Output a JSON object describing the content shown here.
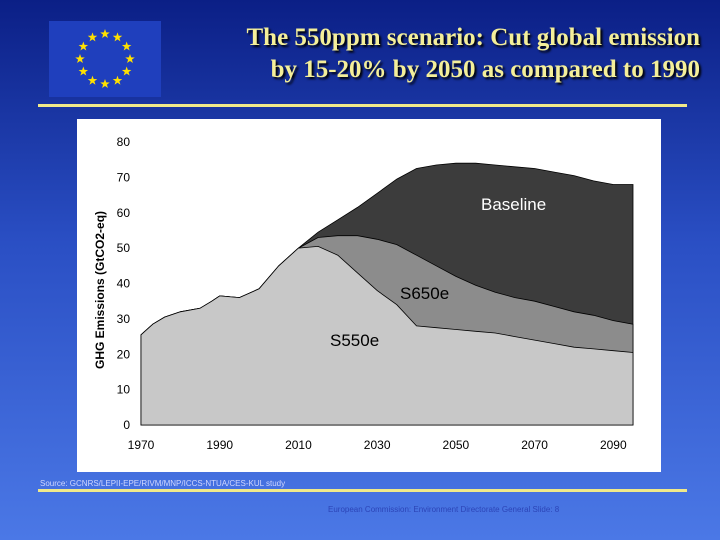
{
  "slide": {
    "title_line1": "The 550ppm scenario: Cut global emission",
    "title_line2": "by 15-20% by 2050 as compared to 1990",
    "source": "Source: GCNRS/LEPII-EPE/RIVM/MNP/ICCS-NTUA/CES-KUL study",
    "footer": "European Commission: Environment Directorate General Slide: 8"
  },
  "colors": {
    "title": "#f4ef9a",
    "rule": "#f0e98a",
    "baseline": "#3c3c3c",
    "s650e": "#8c8c8c",
    "s550e": "#c8c8c8",
    "flag_blue": "#1f3fbd",
    "flag_stars": "#ffe000"
  },
  "chart_data": {
    "type": "area",
    "ylabel": "GHG Emissions (GtCO2-eq)",
    "xlabel": "",
    "ylim": [
      0,
      80
    ],
    "xlim": [
      1970,
      2095
    ],
    "x_ticks": [
      "1970",
      "1990",
      "2010",
      "2030",
      "2050",
      "2070",
      "2090"
    ],
    "y_ticks": [
      "0",
      "10",
      "20",
      "30",
      "40",
      "50",
      "60",
      "70",
      "80"
    ],
    "grid": false,
    "series": [
      {
        "name": "Baseline",
        "x": [
          1970,
          1973,
          1976,
          1980,
          1985,
          1988,
          1990,
          1995,
          2000,
          2005,
          2010,
          2015,
          2020,
          2025,
          2030,
          2035,
          2040,
          2045,
          2050,
          2055,
          2060,
          2065,
          2070,
          2075,
          2080,
          2085,
          2090,
          2095
        ],
        "values": [
          25.5,
          28.5,
          30.5,
          32,
          33,
          35,
          36.5,
          36,
          38.5,
          45,
          50,
          54.5,
          58,
          61.5,
          65.5,
          69.5,
          72.5,
          73.5,
          74,
          74,
          73.5,
          73,
          72.5,
          71.5,
          70.5,
          69,
          68,
          68
        ]
      },
      {
        "name": "S650e",
        "x": [
          1970,
          1973,
          1976,
          1980,
          1985,
          1988,
          1990,
          1995,
          2000,
          2005,
          2010,
          2015,
          2020,
          2025,
          2030,
          2035,
          2040,
          2045,
          2050,
          2055,
          2060,
          2065,
          2070,
          2075,
          2080,
          2085,
          2090,
          2095
        ],
        "values": [
          25.5,
          28.5,
          30.5,
          32,
          33,
          35,
          36.5,
          36,
          38.5,
          45,
          50,
          53,
          53.5,
          53.5,
          52.5,
          51,
          48,
          45,
          42,
          39.5,
          37.5,
          36,
          35,
          33.5,
          32,
          31,
          29.5,
          28.5
        ]
      },
      {
        "name": "S550e",
        "x": [
          1970,
          1973,
          1976,
          1980,
          1985,
          1988,
          1990,
          1995,
          2000,
          2005,
          2010,
          2015,
          2020,
          2025,
          2030,
          2035,
          2040,
          2045,
          2050,
          2055,
          2060,
          2065,
          2070,
          2075,
          2080,
          2085,
          2090,
          2095
        ],
        "values": [
          25.5,
          28.5,
          30.5,
          32,
          33,
          35,
          36.5,
          36,
          38.5,
          45,
          50,
          50.5,
          48,
          43,
          38,
          34,
          28,
          27.5,
          27,
          26.5,
          26,
          25,
          24,
          23,
          22,
          21.5,
          21,
          20.5
        ]
      }
    ]
  }
}
